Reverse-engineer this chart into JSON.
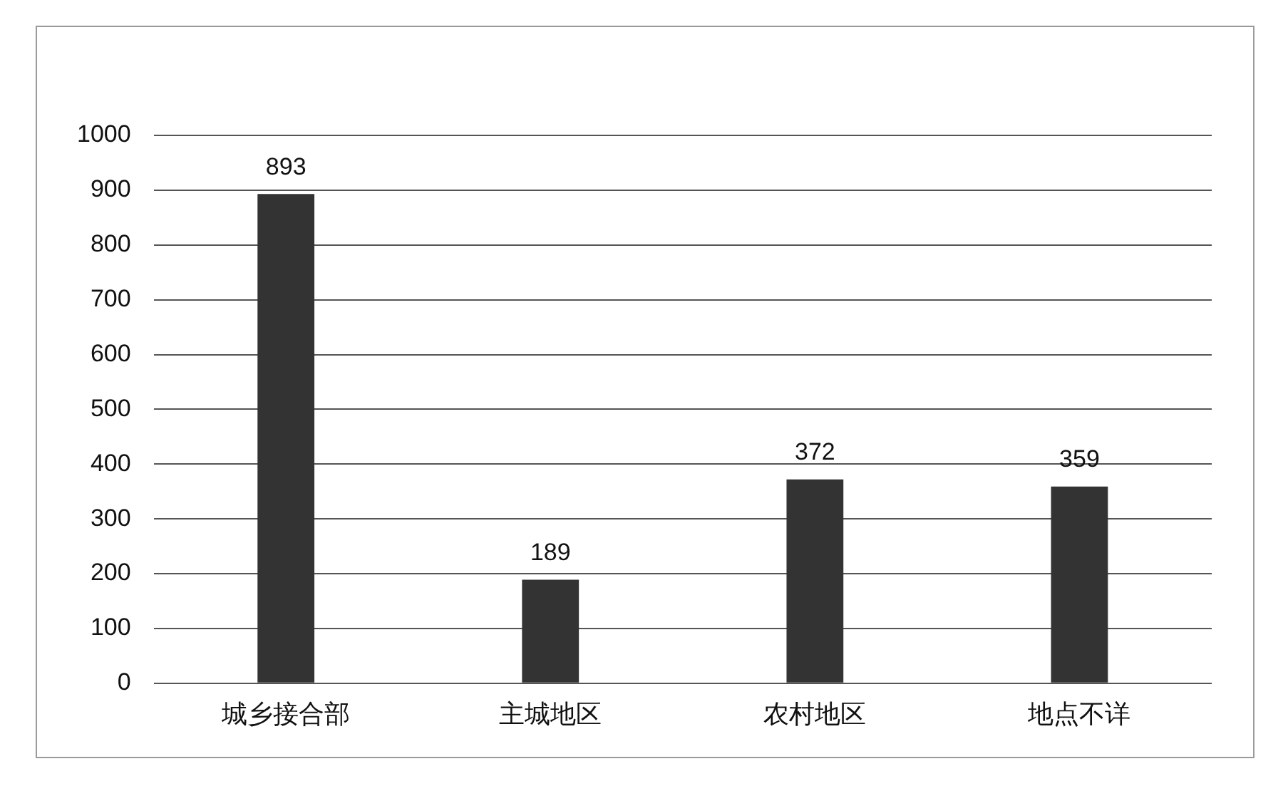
{
  "chart_data": {
    "type": "bar",
    "categories": [
      "城乡接合部",
      "主城地区",
      "农村地区",
      "地点不详"
    ],
    "values": [
      893,
      189,
      372,
      359
    ],
    "color": "#333333",
    "ylim": [
      0,
      1000
    ],
    "yticks": [
      0,
      100,
      200,
      300,
      400,
      500,
      600,
      700,
      800,
      900,
      1000
    ],
    "grid": "y",
    "data_labels": true
  }
}
